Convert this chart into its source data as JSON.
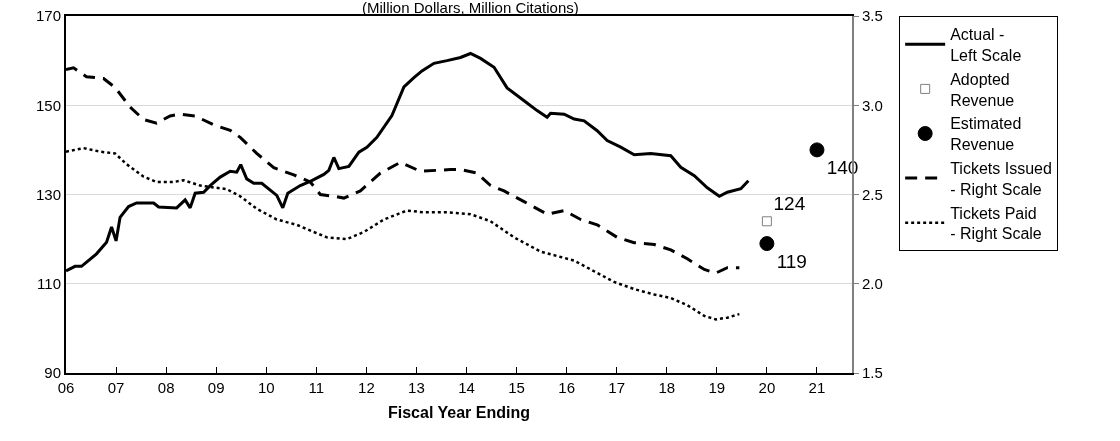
{
  "chart_data": {
    "type": "line",
    "title": "(Million Dollars, Million Citations)",
    "xlabel": "Fiscal Year Ending",
    "xlim": [
      6,
      21.7
    ],
    "xticks": [
      {
        "value": 6,
        "label": "06"
      },
      {
        "value": 7,
        "label": "07"
      },
      {
        "value": 8,
        "label": "08"
      },
      {
        "value": 9,
        "label": "09"
      },
      10,
      11,
      12,
      13,
      14,
      15,
      16,
      17,
      18,
      19,
      20,
      21
    ],
    "ylim": [
      90,
      170
    ],
    "yticks": [
      90,
      110,
      130,
      150,
      170
    ],
    "y2lim": [
      1.5,
      3.5
    ],
    "y2ticks": [
      1.5,
      {
        "value": 2,
        "label": "2.0"
      },
      2.5,
      {
        "value": 3,
        "label": "3.0"
      },
      3.5
    ],
    "grid": "y",
    "legend": "right",
    "series": [
      {
        "name": "Actual - Left Scale",
        "color": "#000000",
        "line_style": "solid",
        "marker": "none",
        "x": [
          6.0,
          6.18,
          6.31,
          6.61,
          6.81,
          6.91,
          7.0,
          7.08,
          7.25,
          7.41,
          7.75,
          7.85,
          8.21,
          8.38,
          8.48,
          8.58,
          8.75,
          8.88,
          9.08,
          9.28,
          9.41,
          9.49,
          9.61,
          9.75,
          9.91,
          10.21,
          10.33,
          10.43,
          10.68,
          10.91,
          11.15,
          11.25,
          11.35,
          11.45,
          11.65,
          11.85,
          12.01,
          12.21,
          12.51,
          12.75,
          12.95,
          13.11,
          13.35,
          13.61,
          13.88,
          14.08,
          14.28,
          14.55,
          14.81,
          15.15,
          15.41,
          15.61,
          15.68,
          15.95,
          16.15,
          16.35,
          16.61,
          16.81,
          17.08,
          17.35,
          17.68,
          18.08,
          18.28,
          18.55,
          18.81,
          19.05,
          19.21,
          19.48,
          19.63
        ],
        "values": [
          112.9,
          113.9,
          113.9,
          116.7,
          119.3,
          122.7,
          119.6,
          124.9,
          127.3,
          128.1,
          128.1,
          127.2,
          127.0,
          128.8,
          127.0,
          130.3,
          130.5,
          132.0,
          133.9,
          135.2,
          135.0,
          136.7,
          133.5,
          132.5,
          132.5,
          129.8,
          127.0,
          130.3,
          132.0,
          133.1,
          134.5,
          135.4,
          138.3,
          135.8,
          136.3,
          139.5,
          140.6,
          142.8,
          147.7,
          154.1,
          156.2,
          157.7,
          159.4,
          160.0,
          160.7,
          161.6,
          160.5,
          158.5,
          153.9,
          151.0,
          148.8,
          147.3,
          148.2,
          148.0,
          146.9,
          146.5,
          144.3,
          142.1,
          140.6,
          138.9,
          139.2,
          138.7,
          136.1,
          134.2,
          131.5,
          129.6,
          130.5,
          131.3,
          133.1
        ]
      },
      {
        "name": "Adopted Revenue",
        "type": "scatter",
        "color": "#808080",
        "marker": "square",
        "x": [
          20
        ],
        "values": [
          124
        ],
        "value_labels": [
          "124"
        ]
      },
      {
        "name": "Estimated Revenue",
        "type": "scatter",
        "color": "#000000",
        "marker": "circle",
        "x": [
          20,
          21
        ],
        "values": [
          119,
          140
        ],
        "value_labels": [
          "119",
          "140"
        ]
      },
      {
        "name": "Tickets Issued - Right Scale",
        "axis": "y2",
        "color": "#000000",
        "line_style": "dashed",
        "marker": "none",
        "x": [
          6.0,
          6.15,
          6.41,
          6.75,
          6.98,
          7.28,
          7.55,
          7.81,
          8.08,
          8.28,
          8.58,
          8.95,
          9.28,
          9.48,
          9.81,
          10.15,
          10.55,
          10.88,
          11.08,
          11.35,
          11.55,
          11.88,
          12.28,
          12.68,
          13.08,
          13.68,
          13.88,
          14.21,
          14.48,
          14.75,
          15.15,
          15.61,
          15.95,
          16.28,
          16.61,
          17.01,
          17.35,
          17.75,
          18.08,
          18.41,
          18.75,
          18.98,
          19.21,
          19.45
        ],
        "values": [
          3.2,
          3.21,
          3.16,
          3.15,
          3.1,
          2.99,
          2.92,
          2.9,
          2.94,
          2.95,
          2.94,
          2.89,
          2.86,
          2.82,
          2.73,
          2.65,
          2.61,
          2.57,
          2.5,
          2.49,
          2.48,
          2.52,
          2.62,
          2.68,
          2.63,
          2.64,
          2.64,
          2.62,
          2.55,
          2.52,
          2.46,
          2.39,
          2.41,
          2.36,
          2.33,
          2.26,
          2.23,
          2.22,
          2.19,
          2.14,
          2.08,
          2.06,
          2.09,
          2.09
        ]
      },
      {
        "name": "Tickets Paid - Right Scale",
        "axis": "y2",
        "color": "#000000",
        "line_style": "dotted",
        "marker": "none",
        "x": [
          6.0,
          6.35,
          6.68,
          6.98,
          7.21,
          7.55,
          7.81,
          8.15,
          8.35,
          8.68,
          9.21,
          9.48,
          9.81,
          10.21,
          10.61,
          10.95,
          11.21,
          11.61,
          11.95,
          12.35,
          12.81,
          13.15,
          13.61,
          14.08,
          14.48,
          14.95,
          15.48,
          15.88,
          16.15,
          16.48,
          16.95,
          17.35,
          17.75,
          18.08,
          18.41,
          18.75,
          18.98,
          19.21,
          19.45
        ],
        "values": [
          2.74,
          2.76,
          2.74,
          2.73,
          2.67,
          2.6,
          2.57,
          2.57,
          2.58,
          2.55,
          2.53,
          2.49,
          2.42,
          2.36,
          2.33,
          2.29,
          2.26,
          2.25,
          2.29,
          2.36,
          2.41,
          2.4,
          2.4,
          2.39,
          2.35,
          2.26,
          2.18,
          2.15,
          2.13,
          2.08,
          2.01,
          1.97,
          1.94,
          1.92,
          1.88,
          1.82,
          1.8,
          1.81,
          1.83
        ]
      }
    ]
  }
}
